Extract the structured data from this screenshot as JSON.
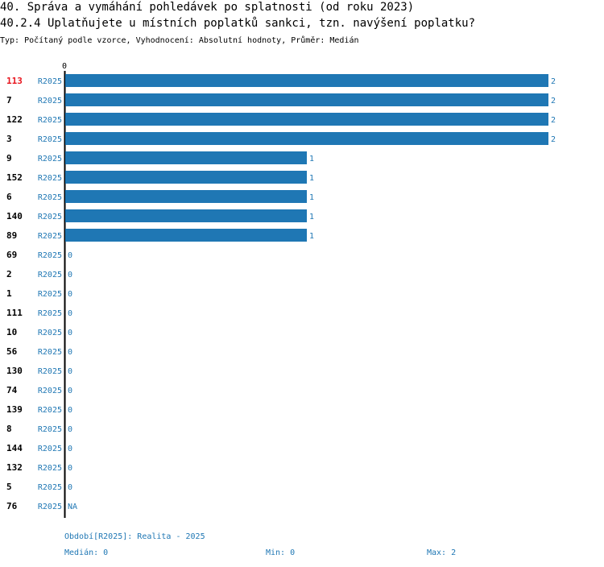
{
  "header": {
    "title": "40. Správa a vymáhání pohledávek po splatnosti (od roku 2023)",
    "question": "40.2.4 Uplatňujete u místních poplatků sankci, tzn. navýšení poplatku?",
    "subtitle": "Typ: Počítaný podle vzorce, Vyhodnocení: Absolutní hodnoty, Průměr: Medián"
  },
  "colors": {
    "bar": "#1f77b4",
    "highlight": "#e8141c",
    "axis": "#000000"
  },
  "chart_data": {
    "type": "bar",
    "orientation": "horizontal",
    "title": "40.2.4 Uplatňujete u místních poplatků sankci, tzn. navýšení poplatku?",
    "axis_zero_label": "0",
    "xlim": [
      0,
      2
    ],
    "series_label": "R2025",
    "highlight_category": "113",
    "categories": [
      "113",
      "7",
      "122",
      "3",
      "9",
      "152",
      "6",
      "140",
      "89",
      "69",
      "2",
      "1",
      "111",
      "10",
      "56",
      "130",
      "74",
      "139",
      "8",
      "144",
      "132",
      "5",
      "76"
    ],
    "values": [
      2,
      2,
      2,
      2,
      1,
      1,
      1,
      1,
      1,
      0,
      0,
      0,
      0,
      0,
      0,
      0,
      0,
      0,
      0,
      0,
      0,
      0,
      null
    ],
    "value_labels": [
      "2",
      "2",
      "2",
      "2",
      "1",
      "1",
      "1",
      "1",
      "1",
      "0",
      "0",
      "0",
      "0",
      "0",
      "0",
      "0",
      "0",
      "0",
      "0",
      "0",
      "0",
      "0",
      "NA"
    ]
  },
  "footer": {
    "period": "Období[R2025]: Realita - 2025",
    "median": "Medián: 0",
    "min": "Min: 0",
    "max": "Max: 2"
  }
}
